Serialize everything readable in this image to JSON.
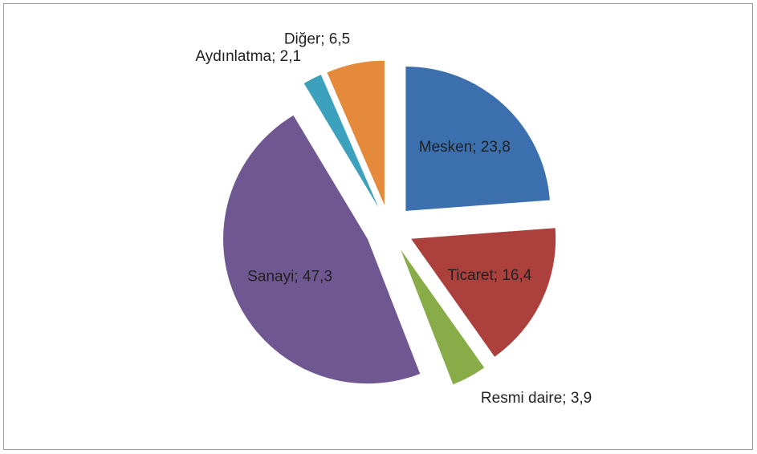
{
  "chart_data": {
    "type": "pie",
    "values": [
      23.8,
      16.4,
      3.9,
      47.3,
      2.1,
      6.5
    ],
    "value_labels": [
      "Mesken; 23,8",
      "Ticaret; 16,4",
      "Resmi daire; 3,9",
      "Sanayi; 47,3",
      "Aydınlatma; 2,1",
      "Diğer; 6,5"
    ],
    "colors": [
      "#3b6fae",
      "#ab403d",
      "#88ac48",
      "#6f5792",
      "#3ba1bd",
      "#e58a3b"
    ],
    "exploded": true
  }
}
